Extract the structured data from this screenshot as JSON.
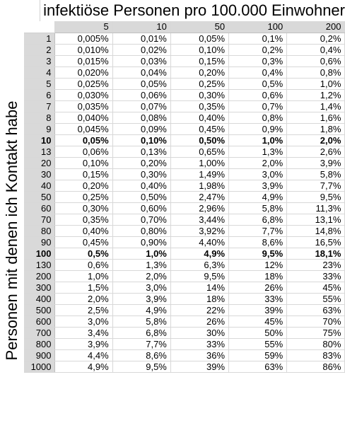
{
  "title": "infektiöse Personen pro 100.000 Einwohner",
  "vertical_label": "Personen mit denen ich Kontakt habe",
  "columns": [
    "5",
    "10",
    "50",
    "100",
    "200"
  ],
  "rows": [
    {
      "label": "1",
      "bold": false,
      "values": [
        "0,005%",
        "0,01%",
        "0,05%",
        "0,1%",
        "0,2%"
      ]
    },
    {
      "label": "2",
      "bold": false,
      "values": [
        "0,010%",
        "0,02%",
        "0,10%",
        "0,2%",
        "0,4%"
      ]
    },
    {
      "label": "3",
      "bold": false,
      "values": [
        "0,015%",
        "0,03%",
        "0,15%",
        "0,3%",
        "0,6%"
      ]
    },
    {
      "label": "4",
      "bold": false,
      "values": [
        "0,020%",
        "0,04%",
        "0,20%",
        "0,4%",
        "0,8%"
      ]
    },
    {
      "label": "5",
      "bold": false,
      "values": [
        "0,025%",
        "0,05%",
        "0,25%",
        "0,5%",
        "1,0%"
      ]
    },
    {
      "label": "6",
      "bold": false,
      "values": [
        "0,030%",
        "0,06%",
        "0,30%",
        "0,6%",
        "1,2%"
      ]
    },
    {
      "label": "7",
      "bold": false,
      "values": [
        "0,035%",
        "0,07%",
        "0,35%",
        "0,7%",
        "1,4%"
      ]
    },
    {
      "label": "8",
      "bold": false,
      "values": [
        "0,040%",
        "0,08%",
        "0,40%",
        "0,8%",
        "1,6%"
      ]
    },
    {
      "label": "9",
      "bold": false,
      "values": [
        "0,045%",
        "0,09%",
        "0,45%",
        "0,9%",
        "1,8%"
      ]
    },
    {
      "label": "10",
      "bold": true,
      "values": [
        "0,05%",
        "0,10%",
        "0,50%",
        "1,0%",
        "2,0%"
      ]
    },
    {
      "label": "13",
      "bold": false,
      "values": [
        "0,06%",
        "0,13%",
        "0,65%",
        "1,3%",
        "2,6%"
      ]
    },
    {
      "label": "20",
      "bold": false,
      "values": [
        "0,10%",
        "0,20%",
        "1,00%",
        "2,0%",
        "3,9%"
      ]
    },
    {
      "label": "30",
      "bold": false,
      "values": [
        "0,15%",
        "0,30%",
        "1,49%",
        "3,0%",
        "5,8%"
      ]
    },
    {
      "label": "40",
      "bold": false,
      "values": [
        "0,20%",
        "0,40%",
        "1,98%",
        "3,9%",
        "7,7%"
      ]
    },
    {
      "label": "50",
      "bold": false,
      "values": [
        "0,25%",
        "0,50%",
        "2,47%",
        "4,9%",
        "9,5%"
      ]
    },
    {
      "label": "60",
      "bold": false,
      "values": [
        "0,30%",
        "0,60%",
        "2,96%",
        "5,8%",
        "11,3%"
      ]
    },
    {
      "label": "70",
      "bold": false,
      "values": [
        "0,35%",
        "0,70%",
        "3,44%",
        "6,8%",
        "13,1%"
      ]
    },
    {
      "label": "80",
      "bold": false,
      "values": [
        "0,40%",
        "0,80%",
        "3,92%",
        "7,7%",
        "14,8%"
      ]
    },
    {
      "label": "90",
      "bold": false,
      "values": [
        "0,45%",
        "0,90%",
        "4,40%",
        "8,6%",
        "16,5%"
      ]
    },
    {
      "label": "100",
      "bold": true,
      "values": [
        "0,5%",
        "1,0%",
        "4,9%",
        "9,5%",
        "18,1%"
      ]
    },
    {
      "label": "130",
      "bold": false,
      "values": [
        "0,6%",
        "1,3%",
        "6,3%",
        "12%",
        "23%"
      ]
    },
    {
      "label": "200",
      "bold": false,
      "values": [
        "1,0%",
        "2,0%",
        "9,5%",
        "18%",
        "33%"
      ]
    },
    {
      "label": "300",
      "bold": false,
      "values": [
        "1,5%",
        "3,0%",
        "14%",
        "26%",
        "45%"
      ]
    },
    {
      "label": "400",
      "bold": false,
      "values": [
        "2,0%",
        "3,9%",
        "18%",
        "33%",
        "55%"
      ]
    },
    {
      "label": "500",
      "bold": false,
      "values": [
        "2,5%",
        "4,9%",
        "22%",
        "39%",
        "63%"
      ]
    },
    {
      "label": "600",
      "bold": false,
      "values": [
        "3,0%",
        "5,8%",
        "26%",
        "45%",
        "70%"
      ]
    },
    {
      "label": "700",
      "bold": false,
      "values": [
        "3,4%",
        "6,8%",
        "30%",
        "50%",
        "75%"
      ]
    },
    {
      "label": "800",
      "bold": false,
      "values": [
        "3,9%",
        "7,7%",
        "33%",
        "55%",
        "80%"
      ]
    },
    {
      "label": "900",
      "bold": false,
      "values": [
        "4,4%",
        "8,6%",
        "36%",
        "59%",
        "83%"
      ]
    },
    {
      "label": "1000",
      "bold": false,
      "values": [
        "4,9%",
        "9,5%",
        "39%",
        "63%",
        "86%"
      ]
    }
  ],
  "colors": {
    "header_fill": "#d9d9d9",
    "gridline": "#d8d8d8",
    "background": "#ffffff"
  }
}
